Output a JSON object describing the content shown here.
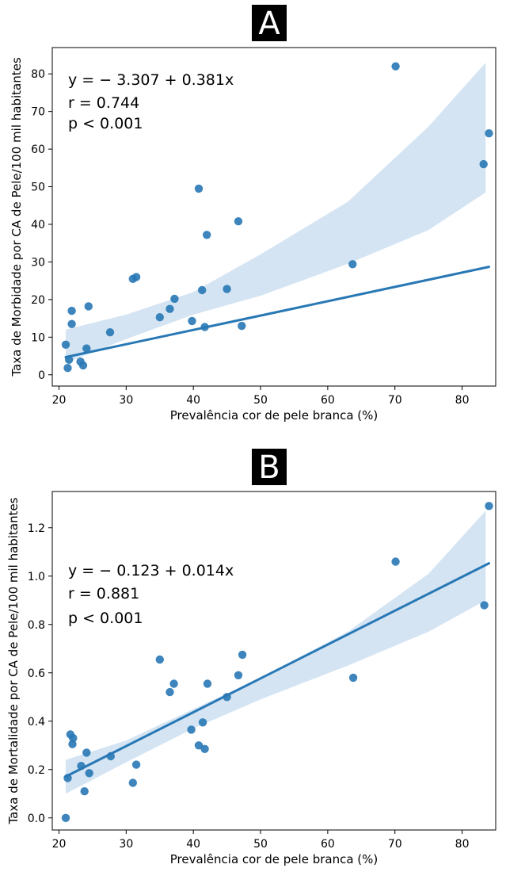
{
  "chart_data": [
    {
      "type": "scatter",
      "panel_label": "A",
      "xlabel": "Prevalência cor de pele branca (%)",
      "ylabel": "Taxa de Morbidade por CA de Pele/100 mil habitantes",
      "xlim": [
        19,
        85
      ],
      "ylim": [
        -3,
        87
      ],
      "xticks": [
        20,
        30,
        40,
        50,
        60,
        70,
        80
      ],
      "yticks": [
        0,
        10,
        20,
        30,
        40,
        50,
        60,
        70,
        80
      ],
      "annotation": [
        "y = − 3.307 + 0.381x",
        "r = 0.744",
        "p < 0.001"
      ],
      "regression": {
        "intercept": -3.307,
        "slope": 0.381,
        "x_range": [
          21,
          84
        ]
      },
      "ci_band": {
        "x": [
          21,
          30,
          40,
          50,
          63,
          75,
          83.5
        ],
        "lower": [
          3.2,
          9.5,
          16,
          21,
          29.5,
          38.5,
          48.5
        ],
        "upper": [
          12,
          16,
          22,
          32,
          46,
          66,
          83
        ]
      },
      "points": [
        {
          "x": 21,
          "y": 8
        },
        {
          "x": 21.3,
          "y": 1.8
        },
        {
          "x": 21.5,
          "y": 4
        },
        {
          "x": 21.9,
          "y": 17
        },
        {
          "x": 21.9,
          "y": 13.5
        },
        {
          "x": 23.2,
          "y": 3.5
        },
        {
          "x": 23.6,
          "y": 2.5
        },
        {
          "x": 24.1,
          "y": 7
        },
        {
          "x": 24.4,
          "y": 18.2
        },
        {
          "x": 27.6,
          "y": 11.3
        },
        {
          "x": 31,
          "y": 25.5
        },
        {
          "x": 31.5,
          "y": 26
        },
        {
          "x": 35,
          "y": 15.3
        },
        {
          "x": 36.5,
          "y": 17.5
        },
        {
          "x": 37.2,
          "y": 20.2
        },
        {
          "x": 39.8,
          "y": 14.3
        },
        {
          "x": 40.8,
          "y": 49.5
        },
        {
          "x": 41.3,
          "y": 22.5
        },
        {
          "x": 41.7,
          "y": 12.7
        },
        {
          "x": 42,
          "y": 37.2
        },
        {
          "x": 45,
          "y": 22.8
        },
        {
          "x": 46.7,
          "y": 40.8
        },
        {
          "x": 47.2,
          "y": 13
        },
        {
          "x": 63.7,
          "y": 29.4
        },
        {
          "x": 70.1,
          "y": 82
        },
        {
          "x": 83.2,
          "y": 56
        },
        {
          "x": 84,
          "y": 64.2
        }
      ],
      "color": "#2878b5",
      "band_color": "#c6dbef",
      "grid": false
    },
    {
      "type": "scatter",
      "panel_label": "B",
      "xlabel": "Prevalência cor de pele branca (%)",
      "ylabel": "Taxa de Mortalidade por CA de Pele/100 mil habitantes",
      "xlim": [
        19,
        85
      ],
      "ylim": [
        -0.05,
        1.35
      ],
      "xticks": [
        20,
        30,
        40,
        50,
        60,
        70,
        80
      ],
      "yticks": [
        0.0,
        0.2,
        0.4,
        0.6,
        0.8,
        1.0,
        1.2
      ],
      "annotation": [
        "y = − 0.123 + 0.014x",
        "r = 0.881",
        "p < 0.001"
      ],
      "regression": {
        "intercept": -0.123,
        "slope": 0.014,
        "x_range": [
          21,
          84
        ]
      },
      "ci_band": {
        "x": [
          21,
          30,
          40,
          50,
          63,
          75,
          83.5
        ],
        "lower": [
          0.1,
          0.23,
          0.37,
          0.49,
          0.63,
          0.77,
          0.9
        ],
        "upper": [
          0.24,
          0.32,
          0.45,
          0.58,
          0.77,
          1.01,
          1.27
        ]
      },
      "points": [
        {
          "x": 21,
          "y": 0.0
        },
        {
          "x": 21.3,
          "y": 0.165
        },
        {
          "x": 21.7,
          "y": 0.345
        },
        {
          "x": 22,
          "y": 0.305
        },
        {
          "x": 22.1,
          "y": 0.33
        },
        {
          "x": 23.3,
          "y": 0.215
        },
        {
          "x": 23.8,
          "y": 0.11
        },
        {
          "x": 24.1,
          "y": 0.27
        },
        {
          "x": 24.5,
          "y": 0.185
        },
        {
          "x": 27.7,
          "y": 0.255
        },
        {
          "x": 31,
          "y": 0.145
        },
        {
          "x": 31.5,
          "y": 0.22
        },
        {
          "x": 35,
          "y": 0.655
        },
        {
          "x": 36.5,
          "y": 0.52
        },
        {
          "x": 37.1,
          "y": 0.555
        },
        {
          "x": 39.7,
          "y": 0.365
        },
        {
          "x": 40.8,
          "y": 0.3
        },
        {
          "x": 41.4,
          "y": 0.395
        },
        {
          "x": 41.7,
          "y": 0.285
        },
        {
          "x": 42.1,
          "y": 0.555
        },
        {
          "x": 45,
          "y": 0.5
        },
        {
          "x": 46.7,
          "y": 0.59
        },
        {
          "x": 47.3,
          "y": 0.675
        },
        {
          "x": 63.8,
          "y": 0.58
        },
        {
          "x": 70.1,
          "y": 1.06
        },
        {
          "x": 83.3,
          "y": 0.88
        },
        {
          "x": 84,
          "y": 1.29
        }
      ],
      "color": "#2878b5",
      "band_color": "#c6dbef",
      "grid": false
    }
  ]
}
